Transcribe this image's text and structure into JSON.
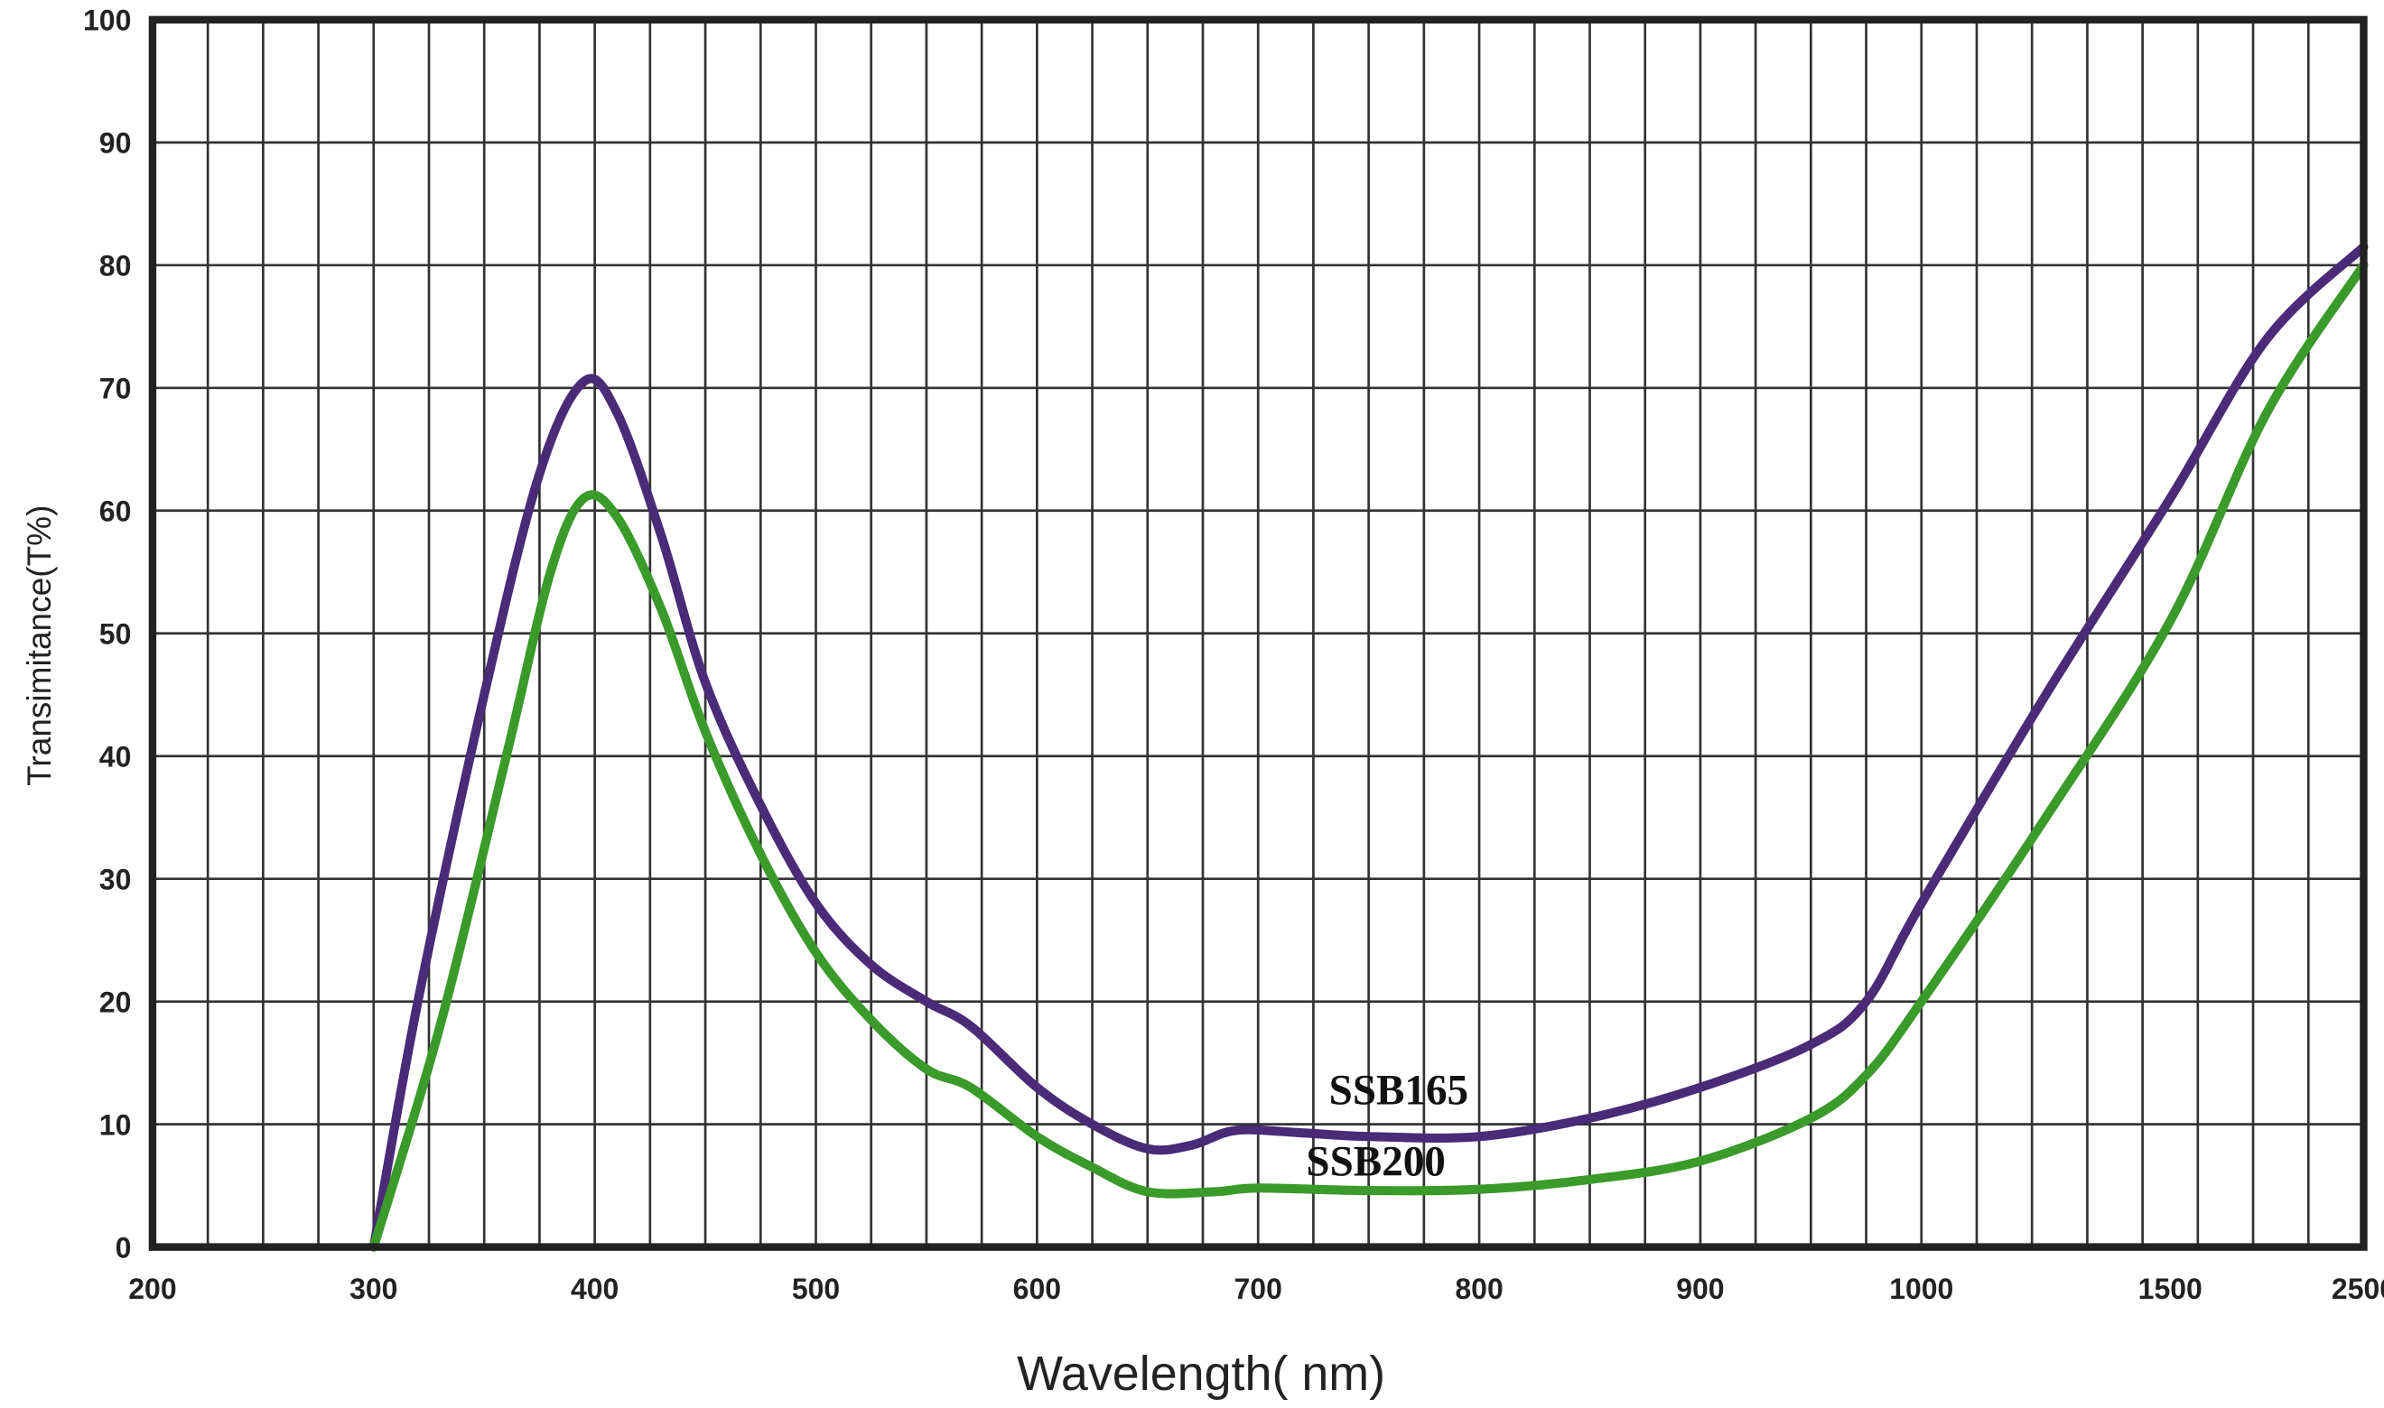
{
  "chart_data": {
    "type": "line",
    "title": "",
    "xlabel": "Wavelength( nm)",
    "ylabel": "Transimitance(T%)",
    "xscale": "piecewise (200-1000 linear, then 1000, 1500, 2500)",
    "x_ticks": [
      200,
      300,
      400,
      500,
      600,
      700,
      800,
      900,
      1000,
      1500,
      2500
    ],
    "y_ticks": [
      0,
      10,
      20,
      30,
      40,
      50,
      60,
      70,
      80,
      90,
      100
    ],
    "xlim": [
      200,
      2500
    ],
    "ylim": [
      0,
      100
    ],
    "grid": true,
    "series": [
      {
        "name": "SSB165",
        "color": "#4b2a78",
        "x": [
          300,
          320,
          350,
          375,
          395,
          410,
          430,
          450,
          475,
          500,
          525,
          550,
          570,
          600,
          625,
          650,
          670,
          690,
          720,
          750,
          800,
          850,
          900,
          950,
          975,
          1000,
          1250,
          1500,
          2000,
          2500
        ],
        "y": [
          0,
          20,
          45,
          63,
          70.5,
          68,
          58,
          46,
          36,
          28,
          23,
          20,
          18,
          13,
          10,
          8,
          8.3,
          9.5,
          9.3,
          9,
          9,
          10.5,
          13,
          16.5,
          20,
          28,
          45,
          61,
          74,
          81.5
        ]
      },
      {
        "name": "SSB200",
        "color": "#3a9a2a",
        "x": [
          300,
          330,
          360,
          380,
          395,
          410,
          430,
          450,
          475,
          500,
          525,
          550,
          570,
          600,
          625,
          650,
          680,
          700,
          750,
          800,
          850,
          900,
          950,
          975,
          1000,
          1250,
          1500,
          2000,
          2500
        ],
        "y": [
          0,
          18,
          40,
          55,
          61,
          59.5,
          52,
          42,
          32,
          24,
          18.5,
          14.5,
          13,
          9,
          6.5,
          4.5,
          4.5,
          4.8,
          4.6,
          4.7,
          5.5,
          7,
          10.5,
          14,
          20,
          35,
          51,
          68,
          80
        ]
      }
    ]
  }
}
